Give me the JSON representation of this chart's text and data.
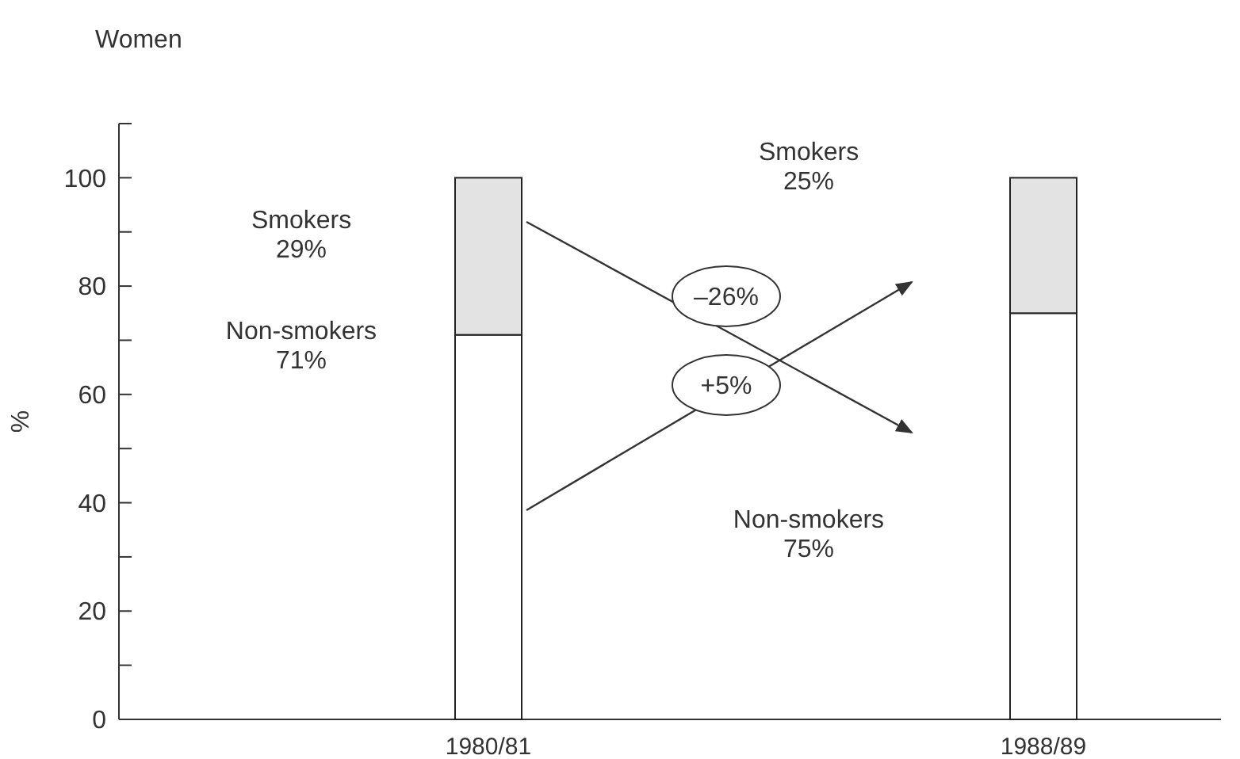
{
  "chart_data": {
    "type": "bar",
    "stacked": true,
    "title": "Women",
    "ylabel": "%",
    "categories": [
      "1980/81",
      "1988/89"
    ],
    "series": [
      {
        "color": "#ffffff",
        "values": [
          71,
          75
        ]
      },
      {
        "color": "#e3e3e3",
        "values": [
          29,
          25
        ]
      }
    ],
    "ylim": [
      0,
      110
    ],
    "yticks": [
      0,
      {
        "value": 10,
        "label": null
      },
      20,
      {
        "value": 30,
        "label": null
      },
      40,
      {
        "value": 50,
        "label": null
      },
      60,
      {
        "value": 70,
        "label": null
      },
      80,
      {
        "value": 90,
        "label": null
      },
      100,
      {
        "value": 110,
        "label": null
      }
    ],
    "annotations": [
      "Smokers\n29%",
      "Non-smokers\n71%",
      "Smokers\n25%",
      "Non-smokers\n75%",
      "–26%",
      "+5%"
    ]
  }
}
